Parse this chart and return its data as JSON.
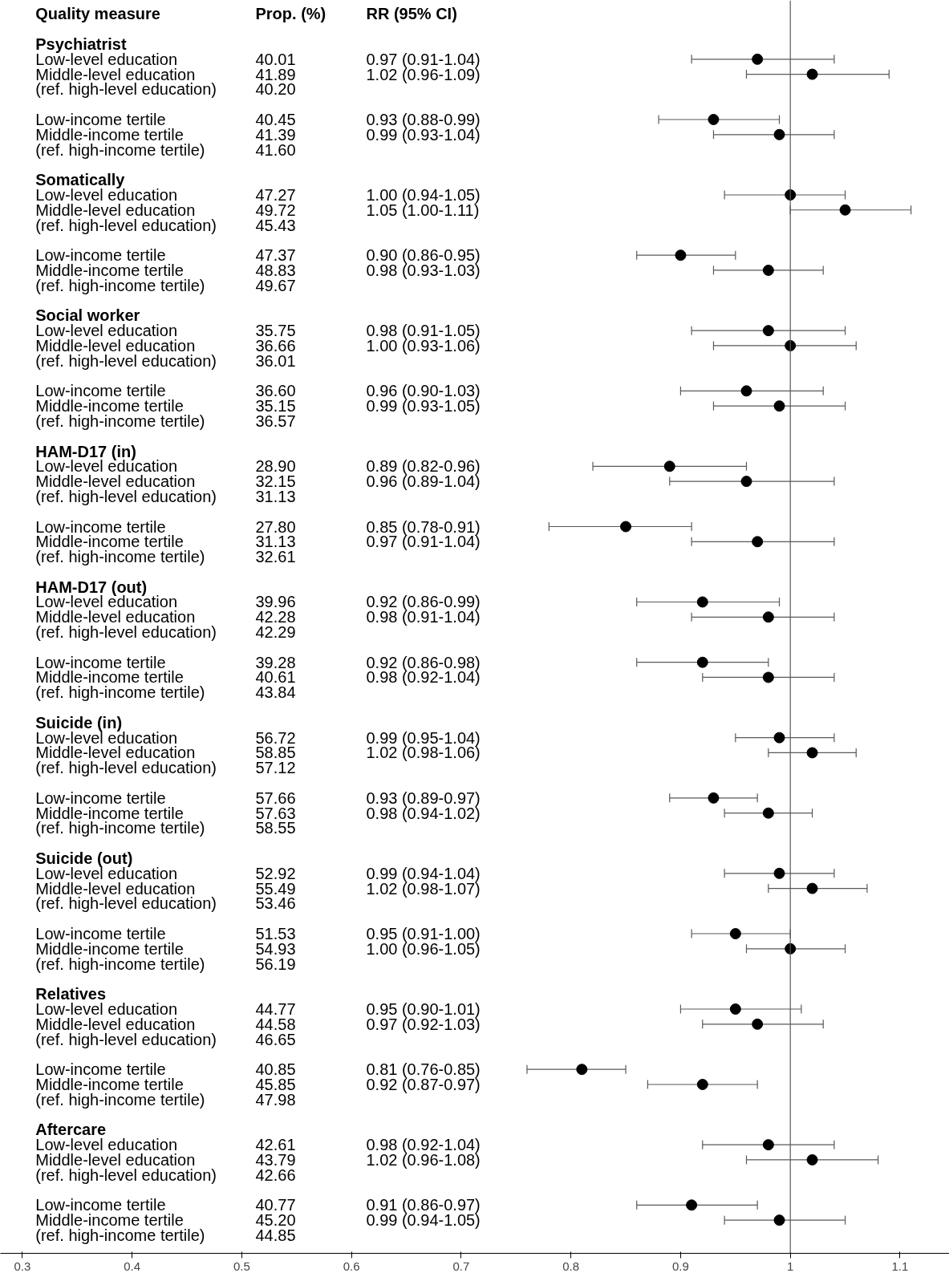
{
  "chart_data": {
    "type": "scatter",
    "orientation": "horizontal",
    "ylabel": "Quality measure",
    "annotations": [
      "Prop. (%)",
      "RR (95% CI)"
    ],
    "marker": "circle",
    "xlim": [
      0.28,
      1.145
    ],
    "xticks": [
      0.3,
      0.4,
      0.5,
      0.6,
      0.7,
      0.8,
      0.9,
      1,
      1.1
    ],
    "ref_lines": [
      {
        "axis": "x",
        "value": 1,
        "color": "#595959"
      }
    ],
    "categories": [
      "Psychiatrist",
      "Low-level education",
      "Middle-level education",
      "(ref. high-level education)",
      null,
      "Low-income tertile",
      "Middle-income tertile",
      "(ref. high-income tertile)",
      null,
      "Somatically",
      "Low-level education",
      "Middle-level education",
      "(ref. high-level education)",
      null,
      "Low-income tertile",
      "Middle-income tertile",
      "(ref. high-income tertile)",
      null,
      "Social worker",
      "Low-level education",
      "Middle-level education",
      "(ref. high-level education)",
      null,
      "Low-income tertile",
      "Middle-income tertile",
      "(ref. high-income tertile)",
      null,
      "HAM-D17 (in)",
      "Low-level education",
      "Middle-level education",
      "(ref. high-level education)",
      null,
      "Low-income tertile",
      "Middle-income tertile",
      "(ref. high-income tertile)",
      null,
      "HAM-D17 (out)",
      "Low-level education",
      "Middle-level education",
      "(ref. high-level education)",
      null,
      "Low-income tertile",
      "Middle-income tertile",
      "(ref. high-income tertile)",
      null,
      "Suicide (in)",
      "Low-level education",
      "Middle-level education",
      "(ref. high-level education)",
      null,
      "Low-income tertile",
      "Middle-income tertile",
      "(ref. high-income tertile)",
      null,
      "Suicide (out)",
      "Low-level education",
      "Middle-level education",
      "(ref. high-level education)",
      null,
      "Low-income tertile",
      "Middle-income tertile",
      "(ref. high-income tertile)",
      null,
      "Relatives",
      "Low-level education",
      "Middle-level education",
      "(ref. high-level education)",
      null,
      "Low-income tertile",
      "Middle-income tertile",
      "(ref. high-income tertile)",
      null,
      "Aftercare",
      "Low-level education",
      "Middle-level education",
      "(ref. high-level education)",
      null,
      "Low-income tertile",
      "Middle-income tertile",
      "(ref. high-income tertile)"
    ],
    "series": [
      {
        "color": "#000000",
        "values": [
          null,
          0.97,
          1.02,
          null,
          null,
          0.93,
          0.99,
          null,
          null,
          null,
          1.0,
          1.05,
          null,
          null,
          0.9,
          0.98,
          null,
          null,
          null,
          0.98,
          1.0,
          null,
          null,
          0.96,
          0.99,
          null,
          null,
          null,
          0.89,
          0.96,
          null,
          null,
          0.85,
          0.97,
          null,
          null,
          null,
          0.92,
          0.98,
          null,
          null,
          0.92,
          0.98,
          null,
          null,
          null,
          0.99,
          1.02,
          null,
          null,
          0.93,
          0.98,
          null,
          null,
          null,
          0.99,
          1.02,
          null,
          null,
          0.95,
          1.0,
          null,
          null,
          null,
          0.95,
          0.97,
          null,
          null,
          0.81,
          0.92,
          null,
          null,
          null,
          0.98,
          1.02,
          null,
          null,
          0.91,
          0.99,
          null
        ],
        "errors": [
          null,
          [
            0.91,
            1.04
          ],
          [
            0.96,
            1.09
          ],
          null,
          null,
          [
            0.88,
            0.99
          ],
          [
            0.93,
            1.04
          ],
          null,
          null,
          null,
          [
            0.94,
            1.05
          ],
          [
            1.0,
            1.11
          ],
          null,
          null,
          [
            0.86,
            0.95
          ],
          [
            0.93,
            1.03
          ],
          null,
          null,
          null,
          [
            0.91,
            1.05
          ],
          [
            0.93,
            1.06
          ],
          null,
          null,
          [
            0.9,
            1.03
          ],
          [
            0.93,
            1.05
          ],
          null,
          null,
          null,
          [
            0.82,
            0.96
          ],
          [
            0.89,
            1.04
          ],
          null,
          null,
          [
            0.78,
            0.91
          ],
          [
            0.91,
            1.04
          ],
          null,
          null,
          null,
          [
            0.86,
            0.99
          ],
          [
            0.91,
            1.04
          ],
          null,
          null,
          [
            0.86,
            0.98
          ],
          [
            0.92,
            1.04
          ],
          null,
          null,
          null,
          [
            0.95,
            1.04
          ],
          [
            0.98,
            1.06
          ],
          null,
          null,
          [
            0.89,
            0.97
          ],
          [
            0.94,
            1.02
          ],
          null,
          null,
          null,
          [
            0.94,
            1.04
          ],
          [
            0.98,
            1.07
          ],
          null,
          null,
          [
            0.91,
            1.0
          ],
          [
            0.96,
            1.05
          ],
          null,
          null,
          null,
          [
            0.9,
            1.01
          ],
          [
            0.92,
            1.03
          ],
          null,
          null,
          [
            0.76,
            0.85
          ],
          [
            0.87,
            0.97
          ],
          null,
          null,
          null,
          [
            0.92,
            1.04
          ],
          [
            0.96,
            1.08
          ],
          null,
          null,
          [
            0.86,
            0.97
          ],
          [
            0.94,
            1.05
          ],
          null
        ]
      },
      {
        "values": [
          null,
          null,
          null,
          null,
          null,
          null,
          null,
          null,
          null,
          null,
          null,
          null,
          null,
          null,
          null,
          null,
          null,
          null,
          null,
          null,
          null,
          null,
          null,
          null,
          null,
          null,
          null,
          null,
          null,
          null,
          null,
          null,
          null,
          null,
          null,
          null,
          null,
          null,
          null,
          null,
          null,
          null,
          null,
          null,
          null,
          null,
          null,
          null,
          null,
          null,
          null,
          null,
          null,
          null,
          null,
          null,
          null,
          null,
          null,
          null,
          null,
          null,
          null,
          null,
          null,
          null,
          null,
          null,
          null,
          null,
          null,
          null,
          null,
          null,
          null,
          null,
          null,
          null,
          null,
          null
        ],
        "value_labels": [
          null,
          "0.97 (0.91-1.04)",
          "1.02 (0.96-1.09)",
          null,
          null,
          "0.93 (0.88-0.99)",
          "0.99 (0.93-1.04)",
          null,
          null,
          null,
          "1.00 (0.94-1.05)",
          "1.05 (1.00-1.11)",
          null,
          null,
          "0.90 (0.86-0.95)",
          "0.98 (0.93-1.03)",
          null,
          null,
          null,
          "0.98 (0.91-1.05)",
          "1.00 (0.93-1.06)",
          null,
          null,
          "0.96 (0.90-1.03)",
          "0.99 (0.93-1.05)",
          null,
          null,
          null,
          "0.89 (0.82-0.96)",
          "0.96 (0.89-1.04)",
          null,
          null,
          "0.85 (0.78-0.91)",
          "0.97 (0.91-1.04)",
          null,
          null,
          null,
          "0.92 (0.86-0.99)",
          "0.98 (0.91-1.04)",
          null,
          null,
          "0.92 (0.86-0.98)",
          "0.98 (0.92-1.04)",
          null,
          null,
          null,
          "0.99 (0.95-1.04)",
          "1.02 (0.98-1.06)",
          null,
          null,
          "0.93 (0.89-0.97)",
          "0.98 (0.94-1.02)",
          null,
          null,
          null,
          "0.99 (0.94-1.04)",
          "1.02 (0.98-1.07)",
          null,
          null,
          "0.95 (0.91-1.00)",
          "1.00 (0.96-1.05)",
          null,
          null,
          null,
          "0.95 (0.90-1.01)",
          "0.97 (0.92-1.03)",
          null,
          null,
          "0.81 (0.76-0.85)",
          "0.92 (0.87-0.97)",
          null,
          null,
          null,
          "0.98 (0.92-1.04)",
          "1.02 (0.96-1.08)",
          null,
          null,
          "0.91 (0.86-0.97)",
          "0.99 (0.94-1.05)",
          null
        ]
      },
      {
        "values": [
          null,
          null,
          null,
          null,
          null,
          null,
          null,
          null,
          null,
          null,
          null,
          null,
          null,
          null,
          null,
          null,
          null,
          null,
          null,
          null,
          null,
          null,
          null,
          null,
          null,
          null,
          null,
          null,
          null,
          null,
          null,
          null,
          null,
          null,
          null,
          null,
          null,
          null,
          null,
          null,
          null,
          null,
          null,
          null,
          null,
          null,
          null,
          null,
          null,
          null,
          null,
          null,
          null,
          null,
          null,
          null,
          null,
          null,
          null,
          null,
          null,
          null,
          null,
          null,
          null,
          null,
          null,
          null,
          null,
          null,
          null,
          null,
          null,
          null,
          null,
          null,
          null,
          null,
          null,
          null
        ],
        "value_labels": [
          null,
          "40.01",
          "41.89",
          "40.20",
          null,
          "40.45",
          "41.39",
          "41.60",
          null,
          null,
          "47.27",
          "49.72",
          "45.43",
          null,
          "47.37",
          "48.83",
          "49.67",
          null,
          null,
          "35.75",
          "36.66",
          "36.01",
          null,
          "36.60",
          "35.15",
          "36.57",
          null,
          null,
          "28.90",
          "32.15",
          "31.13",
          null,
          "27.80",
          "31.13",
          "32.61",
          null,
          null,
          "39.96",
          "42.28",
          "42.29",
          null,
          "39.28",
          "40.61",
          "43.84",
          null,
          null,
          "56.72",
          "58.85",
          "57.12",
          null,
          "57.66",
          "57.63",
          "58.55",
          null,
          null,
          "52.92",
          "55.49",
          "53.46",
          null,
          "51.53",
          "54.93",
          "56.19",
          null,
          null,
          "44.77",
          "44.58",
          "46.65",
          null,
          "40.85",
          "45.85",
          "47.98",
          null,
          null,
          "42.61",
          "43.79",
          "42.66",
          null,
          "40.77",
          "45.20",
          "44.85"
        ]
      }
    ]
  }
}
